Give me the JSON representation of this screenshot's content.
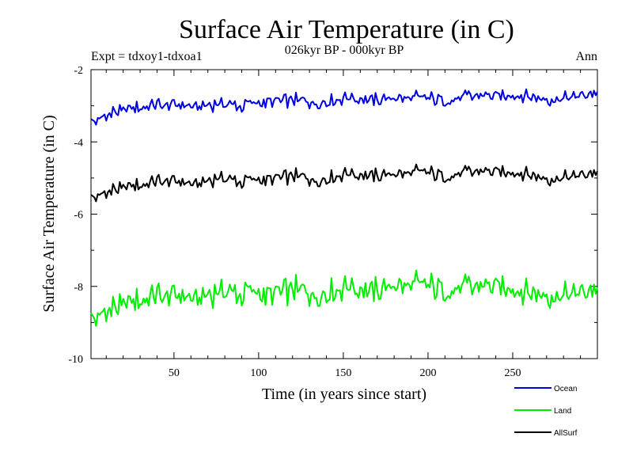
{
  "chart_data": {
    "type": "line",
    "title": "Surface Air Temperature (in C)",
    "subtitle": "026kyr BP - 000kyr BP",
    "experiment_label": "Expt = tdxoy1-tdxoa1",
    "season_label": "Ann",
    "xlabel": "Time (in years since start)",
    "ylabel": "Surface Air Temperature (in C)",
    "xlim": [
      1,
      300
    ],
    "ylim": [
      -10,
      -2
    ],
    "x_ticks": [
      50,
      100,
      150,
      200,
      250
    ],
    "x_tick_labels": [
      "50",
      "100",
      "150",
      "200",
      "250"
    ],
    "y_ticks": [
      -10,
      -8,
      -6,
      -4,
      -2
    ],
    "y_tick_labels": [
      "-10",
      "-8",
      "-6",
      "-4",
      "-2"
    ],
    "grid": false,
    "legend_position": "bottom-right",
    "series_x_step": 15,
    "series": [
      {
        "name": "Ocean",
        "color": "#0000e0",
        "x_start": 1,
        "values": [
          -3.45,
          -3.15,
          -3.05,
          -2.95,
          -3.0,
          -2.95,
          -3.0,
          -2.9,
          -2.85,
          -2.95,
          -2.8,
          -2.85,
          -2.8,
          -2.75,
          -2.85,
          -2.75,
          -2.7,
          -2.7,
          -2.85,
          -2.75,
          -2.6
        ]
      },
      {
        "name": "Land",
        "color": "#00ee00",
        "x_start": 1,
        "values": [
          -8.9,
          -8.55,
          -8.4,
          -8.2,
          -8.3,
          -8.15,
          -8.2,
          -8.25,
          -8.1,
          -8.3,
          -8.05,
          -8.15,
          -8.0,
          -7.9,
          -8.1,
          -8.05,
          -7.95,
          -8.1,
          -8.3,
          -8.2,
          -8.0
        ]
      },
      {
        "name": "AllSurf",
        "color": "#000000",
        "x_start": 1,
        "values": [
          -5.55,
          -5.3,
          -5.2,
          -5.05,
          -5.15,
          -5.0,
          -5.1,
          -5.05,
          -4.95,
          -5.1,
          -4.9,
          -4.95,
          -4.9,
          -4.8,
          -4.95,
          -4.85,
          -4.8,
          -4.85,
          -5.05,
          -4.95,
          -4.8
        ]
      }
    ]
  }
}
